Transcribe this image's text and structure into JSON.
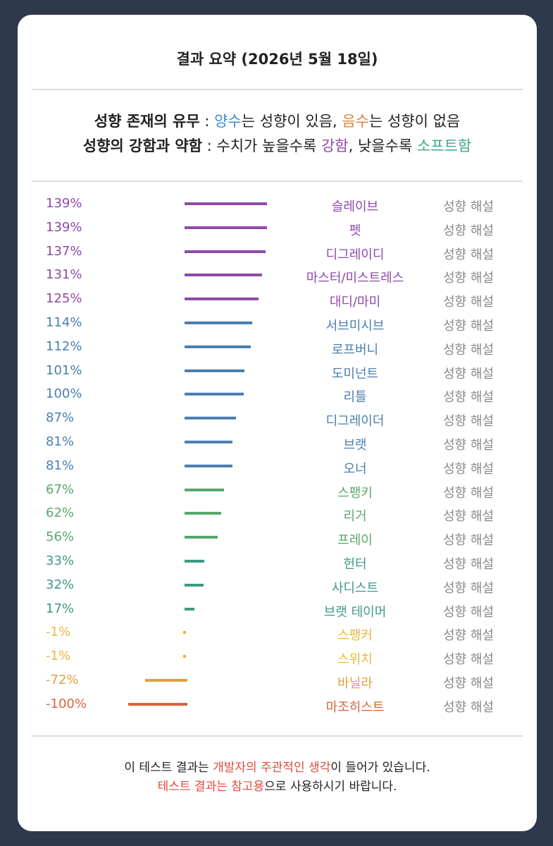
{
  "title": "결과 요약 (2026년 5월 18일)",
  "legend": {
    "line1": [
      {
        "text": "성향 존재의 유무",
        "bold": true,
        "color": "#222222"
      },
      {
        "text": " : ",
        "color": "#222222"
      },
      {
        "text": "양수",
        "color": "#3b8fd0"
      },
      {
        "text": "는 성향이 있음, ",
        "color": "#222222"
      },
      {
        "text": "음수",
        "color": "#e0823a"
      },
      {
        "text": "는 성향이 없음",
        "color": "#222222"
      }
    ],
    "line2": [
      {
        "text": "성향의 강함과 약함",
        "bold": true,
        "color": "#222222"
      },
      {
        "text": " : 수치가 높을수록 ",
        "color": "#222222"
      },
      {
        "text": "강함",
        "color": "#8e4aa8"
      },
      {
        "text": ", 낮을수록 ",
        "color": "#222222"
      },
      {
        "text": "소프트함",
        "color": "#3aa88c"
      }
    ]
  },
  "description_label": "성향 해설",
  "colors": {
    "purple": "#8e4aa8",
    "blue": "#4a7fb0",
    "green": "#58a86a",
    "teal": "#3c9a86",
    "yellow": "#e8b83a",
    "orange": "#e0a040",
    "red": "#d9643a",
    "description": "#888888"
  },
  "chart_data": {
    "type": "bar",
    "orientation": "horizontal",
    "unit": "%",
    "categories": [
      "슬레이브",
      "펫",
      "디그레이디",
      "마스터/미스트레스",
      "대디/마미",
      "서브미시브",
      "로프버니",
      "도미넌트",
      "리틀",
      "디그레이더",
      "브랫",
      "오너",
      "스팽키",
      "리거",
      "프레이",
      "헌터",
      "사디스트",
      "브랫 테이머",
      "스팽커",
      "스위치",
      "바닐라",
      "마조히스트"
    ],
    "values": [
      139,
      139,
      137,
      131,
      125,
      114,
      112,
      101,
      100,
      87,
      81,
      81,
      67,
      62,
      56,
      33,
      32,
      17,
      -1,
      -1,
      -72,
      -100
    ],
    "labels": [
      "139%",
      "139%",
      "137%",
      "131%",
      "125%",
      "114%",
      "112%",
      "101%",
      "100%",
      "87%",
      "81%",
      "81%",
      "67%",
      "62%",
      "56%",
      "33%",
      "32%",
      "17%",
      "-1%",
      "-1%",
      "-72%",
      "-100%"
    ],
    "color_keys": [
      "purple",
      "purple",
      "purple",
      "purple",
      "purple",
      "blue",
      "blue",
      "blue",
      "blue",
      "blue",
      "blue",
      "blue",
      "green",
      "green",
      "green",
      "teal",
      "teal",
      "teal",
      "yellow",
      "yellow",
      "orange",
      "red"
    ]
  },
  "footer": {
    "line1": [
      {
        "text": "이 테스트 결과는 ",
        "color": "#222222"
      },
      {
        "text": "개발자의 주관적인 생각",
        "color": "#e04a3a"
      },
      {
        "text": "이 들어가 있습니다.",
        "color": "#222222"
      }
    ],
    "line2": [
      {
        "text": "테스트 결과는 참고용",
        "color": "#e04a3a"
      },
      {
        "text": "으로 사용하시기 바랍니다.",
        "color": "#222222"
      }
    ]
  }
}
